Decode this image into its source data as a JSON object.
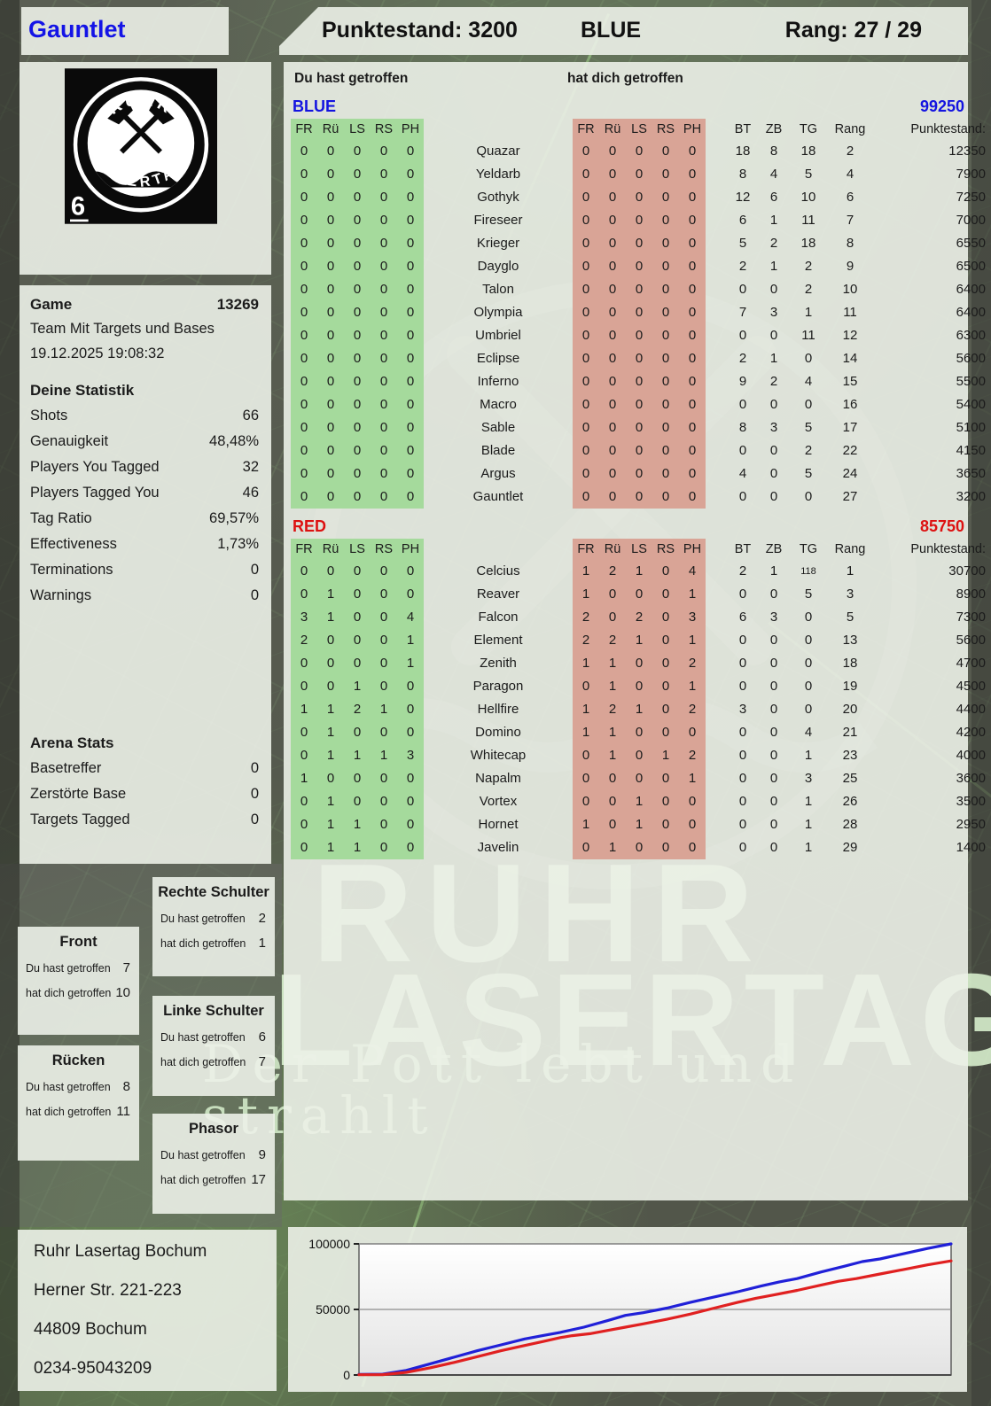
{
  "header": {
    "player_name": "Gauntlet",
    "score_label": "Punktestand: 3200",
    "team_label": "BLUE",
    "rank_label": "Rang: 27 / 29"
  },
  "logo": {
    "top_text": "RUHR",
    "bottom_text": "LASERTAG",
    "badge_number": "6"
  },
  "game_info": {
    "game_label": "Game",
    "game_number": "13269",
    "mode": "Team Mit Targets und Bases",
    "datetime": "19.12.2025 19:08:32"
  },
  "your_stats": {
    "title": "Deine Statistik",
    "rows": [
      {
        "label": "Shots",
        "value": "66"
      },
      {
        "label": "Genauigkeit",
        "value": "48,48%"
      },
      {
        "label": "Players You Tagged",
        "value": "32"
      },
      {
        "label": "Players Tagged You",
        "value": "46"
      },
      {
        "label": "Tag Ratio",
        "value": "69,57%"
      },
      {
        "label": "Effectiveness",
        "value": "1,73%"
      },
      {
        "label": "Terminations",
        "value": "0"
      },
      {
        "label": "Warnings",
        "value": "0"
      }
    ]
  },
  "arena_stats": {
    "title": "Arena Stats",
    "rows": [
      {
        "label": "Basetreffer",
        "value": "0"
      },
      {
        "label": "Zerstörte Base",
        "value": "0"
      },
      {
        "label": "Targets Tagged",
        "value": "0"
      }
    ]
  },
  "hit_labels": {
    "you_hit": "Du hast getroffen",
    "hit_you": "hat dich getroffen"
  },
  "hit_zones": [
    {
      "title": "Front",
      "you_hit": "7",
      "hit_you": "10"
    },
    {
      "title": "Rücken",
      "you_hit": "8",
      "hit_you": "11"
    },
    {
      "title": "Rechte Schulter",
      "you_hit": "2",
      "hit_you": "1"
    },
    {
      "title": "Linke Schulter",
      "you_hit": "6",
      "hit_you": "7"
    },
    {
      "title": "Phasor",
      "you_hit": "9",
      "hit_you": "17"
    }
  ],
  "tables": {
    "you_hit_header": "Du hast getroffen",
    "hit_you_header": "hat dich getroffen",
    "columns_left": [
      "FR",
      "Rü",
      "LS",
      "RS",
      "PH"
    ],
    "columns_right": [
      "FR",
      "Rü",
      "LS",
      "RS",
      "PH"
    ],
    "columns_stats": [
      "BT",
      "ZB",
      "TG",
      "Rang",
      "Punktestand:"
    ],
    "teams": [
      {
        "name": "BLUE",
        "color": "#1414e0",
        "total": "99250",
        "rows": [
          {
            "left": [
              "0",
              "0",
              "0",
              "0",
              "0"
            ],
            "player": "Quazar",
            "right": [
              "0",
              "0",
              "0",
              "0",
              "0"
            ],
            "stats": [
              "18",
              "8",
              "18",
              "2",
              "12350"
            ]
          },
          {
            "left": [
              "0",
              "0",
              "0",
              "0",
              "0"
            ],
            "player": "Yeldarb",
            "right": [
              "0",
              "0",
              "0",
              "0",
              "0"
            ],
            "stats": [
              "8",
              "4",
              "5",
              "4",
              "7900"
            ]
          },
          {
            "left": [
              "0",
              "0",
              "0",
              "0",
              "0"
            ],
            "player": "Gothyk",
            "right": [
              "0",
              "0",
              "0",
              "0",
              "0"
            ],
            "stats": [
              "12",
              "6",
              "10",
              "6",
              "7250"
            ]
          },
          {
            "left": [
              "0",
              "0",
              "0",
              "0",
              "0"
            ],
            "player": "Fireseer",
            "right": [
              "0",
              "0",
              "0",
              "0",
              "0"
            ],
            "stats": [
              "6",
              "1",
              "11",
              "7",
              "7000"
            ]
          },
          {
            "left": [
              "0",
              "0",
              "0",
              "0",
              "0"
            ],
            "player": "Krieger",
            "right": [
              "0",
              "0",
              "0",
              "0",
              "0"
            ],
            "stats": [
              "5",
              "2",
              "18",
              "8",
              "6550"
            ]
          },
          {
            "left": [
              "0",
              "0",
              "0",
              "0",
              "0"
            ],
            "player": "Dayglo",
            "right": [
              "0",
              "0",
              "0",
              "0",
              "0"
            ],
            "stats": [
              "2",
              "1",
              "2",
              "9",
              "6500"
            ]
          },
          {
            "left": [
              "0",
              "0",
              "0",
              "0",
              "0"
            ],
            "player": "Talon",
            "right": [
              "0",
              "0",
              "0",
              "0",
              "0"
            ],
            "stats": [
              "0",
              "0",
              "2",
              "10",
              "6400"
            ]
          },
          {
            "left": [
              "0",
              "0",
              "0",
              "0",
              "0"
            ],
            "player": "Olympia",
            "right": [
              "0",
              "0",
              "0",
              "0",
              "0"
            ],
            "stats": [
              "7",
              "3",
              "1",
              "11",
              "6400"
            ]
          },
          {
            "left": [
              "0",
              "0",
              "0",
              "0",
              "0"
            ],
            "player": "Umbriel",
            "right": [
              "0",
              "0",
              "0",
              "0",
              "0"
            ],
            "stats": [
              "0",
              "0",
              "11",
              "12",
              "6300"
            ]
          },
          {
            "left": [
              "0",
              "0",
              "0",
              "0",
              "0"
            ],
            "player": "Eclipse",
            "right": [
              "0",
              "0",
              "0",
              "0",
              "0"
            ],
            "stats": [
              "2",
              "1",
              "0",
              "14",
              "5600"
            ]
          },
          {
            "left": [
              "0",
              "0",
              "0",
              "0",
              "0"
            ],
            "player": "Inferno",
            "right": [
              "0",
              "0",
              "0",
              "0",
              "0"
            ],
            "stats": [
              "9",
              "2",
              "4",
              "15",
              "5500"
            ]
          },
          {
            "left": [
              "0",
              "0",
              "0",
              "0",
              "0"
            ],
            "player": "Macro",
            "right": [
              "0",
              "0",
              "0",
              "0",
              "0"
            ],
            "stats": [
              "0",
              "0",
              "0",
              "16",
              "5400"
            ]
          },
          {
            "left": [
              "0",
              "0",
              "0",
              "0",
              "0"
            ],
            "player": "Sable",
            "right": [
              "0",
              "0",
              "0",
              "0",
              "0"
            ],
            "stats": [
              "8",
              "3",
              "5",
              "17",
              "5100"
            ]
          },
          {
            "left": [
              "0",
              "0",
              "0",
              "0",
              "0"
            ],
            "player": "Blade",
            "right": [
              "0",
              "0",
              "0",
              "0",
              "0"
            ],
            "stats": [
              "0",
              "0",
              "2",
              "22",
              "4150"
            ]
          },
          {
            "left": [
              "0",
              "0",
              "0",
              "0",
              "0"
            ],
            "player": "Argus",
            "right": [
              "0",
              "0",
              "0",
              "0",
              "0"
            ],
            "stats": [
              "4",
              "0",
              "5",
              "24",
              "3650"
            ]
          },
          {
            "left": [
              "0",
              "0",
              "0",
              "0",
              "0"
            ],
            "player": "Gauntlet",
            "right": [
              "0",
              "0",
              "0",
              "0",
              "0"
            ],
            "stats": [
              "0",
              "0",
              "0",
              "27",
              "3200"
            ]
          }
        ]
      },
      {
        "name": "RED",
        "color": "#dd1111",
        "total": "85750",
        "rows": [
          {
            "left": [
              "0",
              "0",
              "0",
              "0",
              "0"
            ],
            "player": "Celcius",
            "right": [
              "1",
              "2",
              "1",
              "0",
              "4"
            ],
            "stats": [
              "2",
              "1",
              "118",
              "1",
              "30700"
            ]
          },
          {
            "left": [
              "0",
              "1",
              "0",
              "0",
              "0"
            ],
            "player": "Reaver",
            "right": [
              "1",
              "0",
              "0",
              "0",
              "1"
            ],
            "stats": [
              "0",
              "0",
              "5",
              "3",
              "8900"
            ]
          },
          {
            "left": [
              "3",
              "1",
              "0",
              "0",
              "4"
            ],
            "player": "Falcon",
            "right": [
              "2",
              "0",
              "2",
              "0",
              "3"
            ],
            "stats": [
              "6",
              "3",
              "0",
              "5",
              "7300"
            ]
          },
          {
            "left": [
              "2",
              "0",
              "0",
              "0",
              "1"
            ],
            "player": "Element",
            "right": [
              "2",
              "2",
              "1",
              "0",
              "1"
            ],
            "stats": [
              "0",
              "0",
              "0",
              "13",
              "5600"
            ]
          },
          {
            "left": [
              "0",
              "0",
              "0",
              "0",
              "1"
            ],
            "player": "Zenith",
            "right": [
              "1",
              "1",
              "0",
              "0",
              "2"
            ],
            "stats": [
              "0",
              "0",
              "0",
              "18",
              "4700"
            ]
          },
          {
            "left": [
              "0",
              "0",
              "1",
              "0",
              "0"
            ],
            "player": "Paragon",
            "right": [
              "0",
              "1",
              "0",
              "0",
              "1"
            ],
            "stats": [
              "0",
              "0",
              "0",
              "19",
              "4500"
            ]
          },
          {
            "left": [
              "1",
              "1",
              "2",
              "1",
              "0"
            ],
            "player": "Hellfire",
            "right": [
              "1",
              "2",
              "1",
              "0",
              "2"
            ],
            "stats": [
              "3",
              "0",
              "0",
              "20",
              "4400"
            ]
          },
          {
            "left": [
              "0",
              "1",
              "0",
              "0",
              "0"
            ],
            "player": "Domino",
            "right": [
              "1",
              "1",
              "0",
              "0",
              "0"
            ],
            "stats": [
              "0",
              "0",
              "4",
              "21",
              "4200"
            ]
          },
          {
            "left": [
              "0",
              "1",
              "1",
              "1",
              "3"
            ],
            "player": "Whitecap",
            "right": [
              "0",
              "1",
              "0",
              "1",
              "2"
            ],
            "stats": [
              "0",
              "0",
              "1",
              "23",
              "4000"
            ]
          },
          {
            "left": [
              "1",
              "0",
              "0",
              "0",
              "0"
            ],
            "player": "Napalm",
            "right": [
              "0",
              "0",
              "0",
              "0",
              "1"
            ],
            "stats": [
              "0",
              "0",
              "3",
              "25",
              "3600"
            ]
          },
          {
            "left": [
              "0",
              "1",
              "0",
              "0",
              "0"
            ],
            "player": "Vortex",
            "right": [
              "0",
              "0",
              "1",
              "0",
              "0"
            ],
            "stats": [
              "0",
              "0",
              "1",
              "26",
              "3500"
            ]
          },
          {
            "left": [
              "0",
              "1",
              "1",
              "0",
              "0"
            ],
            "player": "Hornet",
            "right": [
              "1",
              "0",
              "1",
              "0",
              "0"
            ],
            "stats": [
              "0",
              "0",
              "1",
              "28",
              "2950"
            ]
          },
          {
            "left": [
              "0",
              "1",
              "1",
              "0",
              "0"
            ],
            "player": "Javelin",
            "right": [
              "0",
              "1",
              "0",
              "0",
              "0"
            ],
            "stats": [
              "0",
              "0",
              "1",
              "29",
              "1400"
            ]
          }
        ]
      }
    ]
  },
  "contact": {
    "lines": [
      "Ruhr Lasertag Bochum",
      "Herner Str. 221-223",
      "44809 Bochum",
      "0234-95043209"
    ]
  },
  "watermark": {
    "line1": "RUHR",
    "line2": "LASERTAG",
    "line3": "Der Pott lebt und strahlt"
  },
  "chart_data": {
    "type": "line",
    "title": "",
    "xlabel": "",
    "ylabel": "",
    "ylim": [
      0,
      100000
    ],
    "yticks": [
      {
        "label": "100000",
        "value": 100000
      },
      {
        "label": "50000",
        "value": 50000
      },
      {
        "label": "0",
        "value": 0
      }
    ],
    "x_ticks": [],
    "grid": true,
    "legend": false,
    "series": [
      {
        "name": "BLUE",
        "color": "#2020d8",
        "points": [
          [
            0,
            400
          ],
          [
            4,
            600
          ],
          [
            8,
            3500
          ],
          [
            12,
            8500
          ],
          [
            16,
            13500
          ],
          [
            20,
            18500
          ],
          [
            24,
            23000
          ],
          [
            28,
            27500
          ],
          [
            31,
            30000
          ],
          [
            34,
            32500
          ],
          [
            38,
            36500
          ],
          [
            42,
            41500
          ],
          [
            45,
            45500
          ],
          [
            48,
            47500
          ],
          [
            52,
            51000
          ],
          [
            56,
            55500
          ],
          [
            60,
            59500
          ],
          [
            64,
            63500
          ],
          [
            68,
            68000
          ],
          [
            71,
            71000
          ],
          [
            74,
            73500
          ],
          [
            78,
            78500
          ],
          [
            82,
            83000
          ],
          [
            85,
            86500
          ],
          [
            88,
            88500
          ],
          [
            92,
            92500
          ],
          [
            96,
            96500
          ],
          [
            100,
            100000
          ]
        ]
      },
      {
        "name": "RED",
        "color": "#e02020",
        "points": [
          [
            0,
            200
          ],
          [
            4,
            300
          ],
          [
            8,
            2000
          ],
          [
            12,
            5500
          ],
          [
            16,
            9500
          ],
          [
            20,
            14000
          ],
          [
            24,
            18500
          ],
          [
            28,
            22500
          ],
          [
            31,
            25500
          ],
          [
            34,
            28500
          ],
          [
            36,
            30000
          ],
          [
            39,
            31500
          ],
          [
            42,
            34000
          ],
          [
            45,
            36500
          ],
          [
            48,
            39000
          ],
          [
            52,
            42500
          ],
          [
            56,
            46500
          ],
          [
            60,
            51000
          ],
          [
            64,
            55500
          ],
          [
            67,
            58500
          ],
          [
            70,
            61000
          ],
          [
            74,
            64500
          ],
          [
            78,
            68500
          ],
          [
            81,
            71500
          ],
          [
            84,
            73500
          ],
          [
            88,
            77000
          ],
          [
            92,
            80500
          ],
          [
            96,
            84000
          ],
          [
            100,
            87000
          ]
        ]
      }
    ]
  }
}
